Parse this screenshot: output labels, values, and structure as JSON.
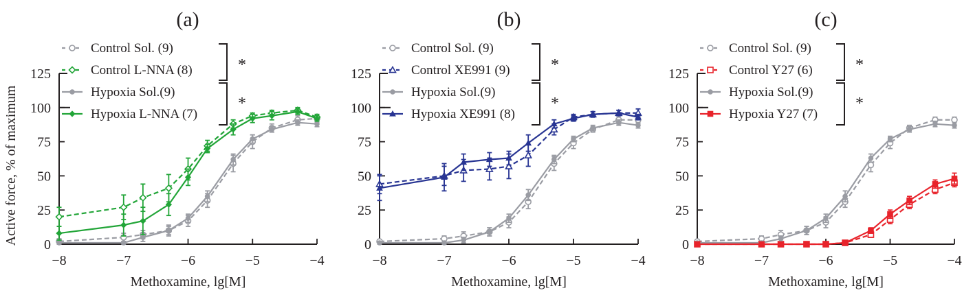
{
  "chart_data": [
    {
      "type": "line",
      "title": "(a)",
      "xlabel": "Methoxamine, lg[M]",
      "ylabel": "Active force, % of maximum",
      "xlim": [
        -8,
        -4
      ],
      "ylim": [
        0,
        125
      ],
      "xticks": [
        "−8",
        "−7",
        "−6",
        "−5",
        "−4"
      ],
      "yticks": [
        "0",
        "25",
        "50",
        "75",
        "100",
        "125"
      ],
      "significance": [
        "*",
        "*"
      ],
      "series": [
        {
          "name": "Control Sol. (9)",
          "color": "#9a9ca3",
          "dash": true,
          "marker": "circle-open",
          "x": [
            -8,
            -7,
            -6.7,
            -6.3,
            -6,
            -5.7,
            -5.3,
            -5,
            -4.7,
            -4.3,
            -4
          ],
          "y": [
            2,
            5,
            7,
            10,
            17,
            32,
            59,
            75,
            85,
            91,
            92
          ],
          "err": [
            2,
            3,
            3,
            4,
            4,
            5,
            6,
            5,
            3,
            3,
            3
          ]
        },
        {
          "name": "Control L-NNA (8)",
          "color": "#22a538",
          "dash": true,
          "marker": "diamond-open",
          "x": [
            -8,
            -7,
            -6.7,
            -6.3,
            -6,
            -5.7,
            -5.3,
            -5,
            -4.7,
            -4.3,
            -4
          ],
          "y": [
            20,
            27,
            34,
            41,
            55,
            72,
            88,
            94,
            96,
            98,
            93
          ],
          "err": [
            7,
            9,
            10,
            10,
            8,
            4,
            3,
            2,
            2,
            2,
            2
          ]
        },
        {
          "name": "Hypoxia Sol.(9)",
          "color": "#9a9ca3",
          "dash": false,
          "marker": "circle-filled",
          "x": [
            -8,
            -7,
            -6.7,
            -6.3,
            -6,
            -5.7,
            -5.3,
            -5,
            -4.7,
            -4.3,
            -4
          ],
          "y": [
            1,
            1,
            5,
            10,
            19,
            35,
            62,
            77,
            84,
            89,
            88
          ],
          "err": [
            1,
            1,
            3,
            3,
            3,
            4,
            4,
            3,
            2,
            2,
            2
          ]
        },
        {
          "name": "Hypoxia L-NNA (7)",
          "color": "#22a538",
          "dash": false,
          "marker": "diamond-filled",
          "x": [
            -8,
            -7,
            -6.7,
            -6.3,
            -6,
            -5.7,
            -5.3,
            -5,
            -4.7,
            -4.3,
            -4
          ],
          "y": [
            8,
            14,
            17,
            29,
            49,
            70,
            84,
            92,
            94,
            97,
            92
          ],
          "err": [
            5,
            8,
            10,
            8,
            6,
            3,
            4,
            3,
            3,
            2,
            2
          ]
        }
      ]
    },
    {
      "type": "line",
      "title": "(b)",
      "xlabel": "Methoxamine, lg[M]",
      "ylabel": "",
      "xlim": [
        -8,
        -4
      ],
      "ylim": [
        0,
        125
      ],
      "xticks": [
        "−8",
        "−7",
        "−6",
        "−5",
        "−4"
      ],
      "yticks": [
        "0",
        "25",
        "50",
        "75",
        "100",
        "125"
      ],
      "significance": [
        "*",
        "*"
      ],
      "series": [
        {
          "name": "Control Sol. (9)",
          "color": "#9a9ca3",
          "dash": true,
          "marker": "circle-open",
          "x": [
            -8,
            -7,
            -6.7,
            -6.3,
            -6,
            -5.7,
            -5.3,
            -5,
            -4.7,
            -4.3,
            -4
          ],
          "y": [
            2,
            4,
            6,
            9,
            16,
            31,
            59,
            74,
            84,
            91,
            91
          ],
          "err": [
            1,
            2,
            3,
            3,
            4,
            5,
            5,
            4,
            2,
            3,
            3
          ]
        },
        {
          "name": "Control XE991 (9)",
          "color": "#283593",
          "dash": true,
          "marker": "triangle-open",
          "x": [
            -8,
            -7,
            -6.7,
            -6.3,
            -6,
            -5.7,
            -5.3,
            -5,
            -4.7,
            -4.3,
            -4
          ],
          "y": [
            44,
            50,
            54,
            55,
            57,
            65,
            84,
            93,
            95,
            96,
            96
          ],
          "err": [
            7,
            7,
            8,
            8,
            9,
            8,
            4,
            2,
            2,
            2,
            3
          ]
        },
        {
          "name": "Hypoxia Sol.(9)",
          "color": "#9a9ca3",
          "dash": false,
          "marker": "circle-filled",
          "x": [
            -8,
            -7,
            -6.7,
            -6.3,
            -6,
            -5.7,
            -5.3,
            -5,
            -4.7,
            -4.3,
            -4
          ],
          "y": [
            1,
            1,
            3,
            9,
            19,
            36,
            62,
            77,
            85,
            89,
            87
          ],
          "err": [
            1,
            1,
            2,
            3,
            3,
            4,
            3,
            2,
            2,
            2,
            2
          ]
        },
        {
          "name": "Hypoxia XE991 (8)",
          "color": "#283593",
          "dash": false,
          "marker": "triangle-filled",
          "x": [
            -8,
            -7,
            -6.7,
            -6.3,
            -6,
            -5.7,
            -5.3,
            -5,
            -4.7,
            -4.3,
            -4
          ],
          "y": [
            41,
            49,
            60,
            62,
            63,
            74,
            88,
            92,
            95,
            96,
            93
          ],
          "err": [
            9,
            10,
            6,
            5,
            5,
            6,
            3,
            2,
            2,
            2,
            2
          ]
        }
      ]
    },
    {
      "type": "line",
      "title": "(c)",
      "xlabel": "Methoxamine, lg[M]",
      "ylabel": "",
      "xlim": [
        -8,
        -4
      ],
      "ylim": [
        0,
        125
      ],
      "xticks": [
        "−8",
        "−7",
        "−6",
        "−5",
        "−4"
      ],
      "yticks": [
        "0",
        "25",
        "50",
        "75",
        "100",
        "125"
      ],
      "significance": [
        "*",
        "*"
      ],
      "series": [
        {
          "name": "Control Sol. (9)",
          "color": "#9a9ca3",
          "dash": true,
          "marker": "circle-open",
          "x": [
            -8,
            -7,
            -6.7,
            -6.3,
            -6,
            -5.7,
            -5.3,
            -5,
            -4.7,
            -4.3,
            -4
          ],
          "y": [
            2,
            4,
            7,
            10,
            16,
            31,
            58,
            74,
            85,
            91,
            91
          ],
          "err": [
            1,
            2,
            3,
            3,
            4,
            4,
            5,
            4,
            2,
            2,
            2
          ]
        },
        {
          "name": "Control Y27 (6)",
          "color": "#e8232b",
          "dash": true,
          "marker": "square-open",
          "x": [
            -8,
            -7,
            -6.7,
            -6.3,
            -6,
            -5.7,
            -5.3,
            -5,
            -4.7,
            -4.3,
            -4
          ],
          "y": [
            0,
            0,
            0,
            0,
            0,
            1,
            7,
            18,
            29,
            40,
            45
          ],
          "err": [
            0,
            0,
            0,
            0,
            0,
            1,
            2,
            3,
            3,
            3,
            3
          ]
        },
        {
          "name": "Hypoxia Sol.(9)",
          "color": "#9a9ca3",
          "dash": false,
          "marker": "circle-filled",
          "x": [
            -8,
            -7,
            -6.7,
            -6.3,
            -6,
            -5.7,
            -5.3,
            -5,
            -4.7,
            -4.3,
            -4
          ],
          "y": [
            1,
            1,
            4,
            10,
            19,
            35,
            63,
            77,
            84,
            88,
            87
          ],
          "err": [
            1,
            1,
            2,
            3,
            3,
            4,
            3,
            2,
            2,
            2,
            2
          ]
        },
        {
          "name": "Hypoxia Y27 (7)",
          "color": "#e8232b",
          "dash": false,
          "marker": "square-filled",
          "x": [
            -8,
            -7,
            -6.7,
            -6.3,
            -6,
            -5.7,
            -5.3,
            -5,
            -4.7,
            -4.3,
            -4
          ],
          "y": [
            0,
            0,
            0,
            0,
            0,
            1,
            10,
            22,
            32,
            44,
            48
          ],
          "err": [
            0,
            0,
            0,
            0,
            0,
            1,
            2,
            3,
            3,
            3,
            4
          ]
        }
      ]
    }
  ]
}
